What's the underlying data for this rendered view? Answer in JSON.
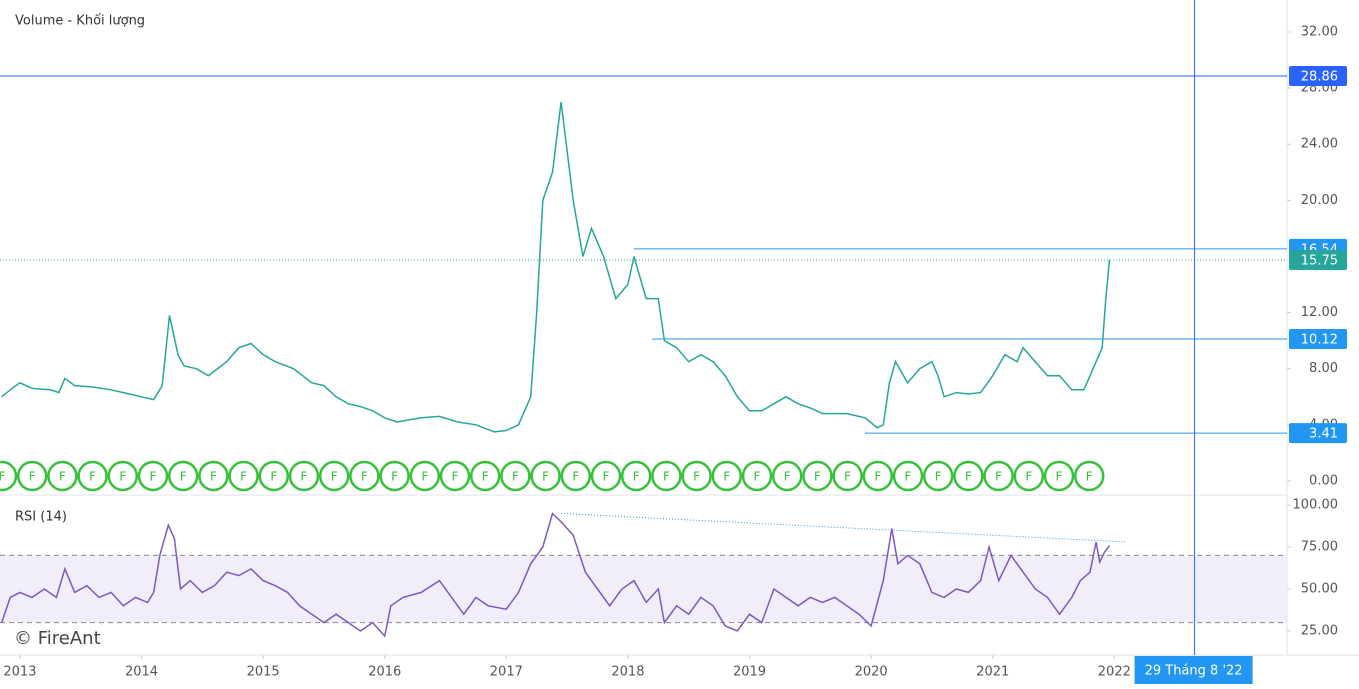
{
  "chart_data": [
    {
      "type": "line",
      "title": "Volume - Khối lượng",
      "watermark": "© FireAnt",
      "report_marker_label": "F",
      "color": "#26a69a",
      "x": [
        2012.85,
        2012.92,
        2013.0,
        2013.1,
        2013.25,
        2013.32,
        2013.37,
        2013.45,
        2013.6,
        2013.75,
        2013.9,
        2014.0,
        2014.1,
        2014.17,
        2014.23,
        2014.3,
        2014.35,
        2014.45,
        2014.55,
        2014.7,
        2014.8,
        2014.9,
        2015.0,
        2015.1,
        2015.25,
        2015.4,
        2015.5,
        2015.6,
        2015.7,
        2015.8,
        2015.9,
        2016.0,
        2016.1,
        2016.3,
        2016.45,
        2016.6,
        2016.75,
        2016.9,
        2017.0,
        2017.1,
        2017.2,
        2017.25,
        2017.3,
        2017.38,
        2017.45,
        2017.55,
        2017.63,
        2017.7,
        2017.8,
        2017.9,
        2018.0,
        2018.05,
        2018.15,
        2018.25,
        2018.3,
        2018.4,
        2018.5,
        2018.6,
        2018.7,
        2018.8,
        2018.9,
        2019.0,
        2019.1,
        2019.2,
        2019.3,
        2019.4,
        2019.5,
        2019.6,
        2019.7,
        2019.8,
        2019.95,
        2020.05,
        2020.1,
        2020.15,
        2020.2,
        2020.3,
        2020.4,
        2020.5,
        2020.55,
        2020.6,
        2020.7,
        2020.8,
        2020.9,
        2021.0,
        2021.1,
        2021.2,
        2021.25,
        2021.35,
        2021.45,
        2021.55,
        2021.65,
        2021.75,
        2021.8,
        2021.85,
        2021.9,
        2021.93,
        2021.96
      ],
      "values": [
        6.0,
        6.5,
        7.0,
        6.6,
        6.5,
        6.3,
        7.3,
        6.8,
        6.7,
        6.5,
        6.2,
        6.0,
        5.8,
        6.8,
        11.8,
        9.0,
        8.2,
        8.0,
        7.5,
        8.5,
        9.5,
        9.8,
        9.0,
        8.5,
        8.0,
        7.0,
        6.8,
        6.0,
        5.5,
        5.3,
        5.0,
        4.5,
        4.2,
        4.5,
        4.6,
        4.2,
        4.0,
        3.5,
        3.6,
        4.0,
        6.0,
        12.0,
        20.0,
        22.0,
        27.0,
        20.0,
        16.0,
        18.0,
        16.0,
        13.0,
        14.0,
        16.0,
        13.0,
        13.0,
        10.0,
        9.5,
        8.5,
        9.0,
        8.5,
        7.5,
        6.0,
        5.0,
        5.0,
        5.5,
        6.0,
        5.5,
        5.2,
        4.8,
        4.8,
        4.8,
        4.5,
        3.8,
        4.0,
        7.0,
        8.5,
        7.0,
        8.0,
        8.5,
        7.5,
        6.0,
        6.3,
        6.2,
        6.3,
        7.5,
        9.0,
        8.5,
        9.5,
        8.5,
        7.5,
        7.5,
        6.5,
        6.5,
        7.5,
        8.5,
        9.5,
        13.0,
        15.75
      ],
      "xlim": [
        2012.836,
        2023.42
      ],
      "ylim": [
        -1.0,
        34.28
      ],
      "xticks": [
        2013,
        2014,
        2015,
        2016,
        2017,
        2018,
        2019,
        2020,
        2021,
        2022
      ],
      "yticks": [
        {
          "value": 0,
          "label": "0.00"
        },
        {
          "value": 4,
          "label": "4.00"
        },
        {
          "value": 8,
          "label": "8.00"
        },
        {
          "value": 12,
          "label": "12.00"
        },
        {
          "value": 20,
          "label": "20.00"
        },
        {
          "value": 24,
          "label": "24.00"
        },
        {
          "value": 28,
          "label": "28.00"
        },
        {
          "value": 32,
          "label": "32.00"
        }
      ],
      "price_lines": [
        {
          "value": 28.86,
          "from": 2012.836,
          "color": "#2962ff",
          "style": "solid"
        },
        {
          "value": 16.54,
          "from": 2018.05,
          "color": "#2196f3",
          "style": "solid"
        },
        {
          "value": 15.75,
          "from": 2012.836,
          "color": "#26a69a",
          "style": "dotted"
        },
        {
          "value": 10.12,
          "from": 2018.2,
          "color": "#2196f3",
          "style": "solid"
        },
        {
          "value": 3.41,
          "from": 2019.95,
          "color": "#2196f3",
          "style": "solid"
        }
      ],
      "crosshair": {
        "value": 2022.66,
        "label": "29 Tháng 8 '22"
      }
    },
    {
      "type": "line",
      "title": "RSI (14)",
      "color": "#7e57c2",
      "x": [
        2012.85,
        2012.92,
        2013.0,
        2013.1,
        2013.2,
        2013.3,
        2013.37,
        2013.45,
        2013.55,
        2013.65,
        2013.75,
        2013.85,
        2013.95,
        2014.05,
        2014.1,
        2014.15,
        2014.22,
        2014.27,
        2014.32,
        2014.4,
        2014.5,
        2014.6,
        2014.7,
        2014.8,
        2014.9,
        2015.0,
        2015.1,
        2015.2,
        2015.3,
        2015.4,
        2015.5,
        2015.6,
        2015.7,
        2015.8,
        2015.9,
        2016.0,
        2016.05,
        2016.15,
        2016.3,
        2016.45,
        2016.55,
        2016.65,
        2016.75,
        2016.85,
        2017.0,
        2017.1,
        2017.2,
        2017.3,
        2017.38,
        2017.45,
        2017.55,
        2017.65,
        2017.75,
        2017.85,
        2017.95,
        2018.05,
        2018.15,
        2018.25,
        2018.3,
        2018.4,
        2018.5,
        2018.6,
        2018.7,
        2018.8,
        2018.9,
        2019.0,
        2019.1,
        2019.2,
        2019.3,
        2019.4,
        2019.5,
        2019.6,
        2019.7,
        2019.8,
        2019.9,
        2020.0,
        2020.1,
        2020.17,
        2020.22,
        2020.3,
        2020.4,
        2020.5,
        2020.6,
        2020.7,
        2020.8,
        2020.9,
        2020.97,
        2021.05,
        2021.15,
        2021.25,
        2021.35,
        2021.45,
        2021.55,
        2021.65,
        2021.72,
        2021.8,
        2021.85,
        2021.88,
        2021.92,
        2021.96
      ],
      "values": [
        30,
        45,
        48,
        45,
        50,
        45,
        62,
        48,
        52,
        45,
        48,
        40,
        45,
        42,
        48,
        70,
        88,
        80,
        50,
        55,
        48,
        52,
        60,
        58,
        62,
        55,
        52,
        48,
        40,
        35,
        30,
        35,
        30,
        25,
        30,
        22,
        40,
        45,
        48,
        55,
        45,
        35,
        45,
        40,
        38,
        48,
        65,
        75,
        95,
        90,
        82,
        60,
        50,
        40,
        50,
        55,
        42,
        50,
        30,
        40,
        35,
        45,
        40,
        28,
        25,
        35,
        30,
        50,
        45,
        40,
        45,
        42,
        45,
        40,
        35,
        28,
        55,
        86,
        65,
        70,
        65,
        48,
        45,
        50,
        48,
        55,
        75,
        55,
        70,
        60,
        50,
        45,
        35,
        45,
        55,
        60,
        78,
        66,
        72,
        76
      ],
      "ylim": [
        10.7,
        104.8
      ],
      "bands": [
        30,
        70
      ],
      "yticks": [
        {
          "value": 25,
          "label": "25.00"
        },
        {
          "value": 50,
          "label": "50.00"
        },
        {
          "value": 75,
          "label": "75.00"
        },
        {
          "value": 100,
          "label": "100.00"
        }
      ],
      "trendline": {
        "x": [
          2017.45,
          2022.1
        ],
        "values": [
          95,
          78
        ]
      }
    }
  ]
}
